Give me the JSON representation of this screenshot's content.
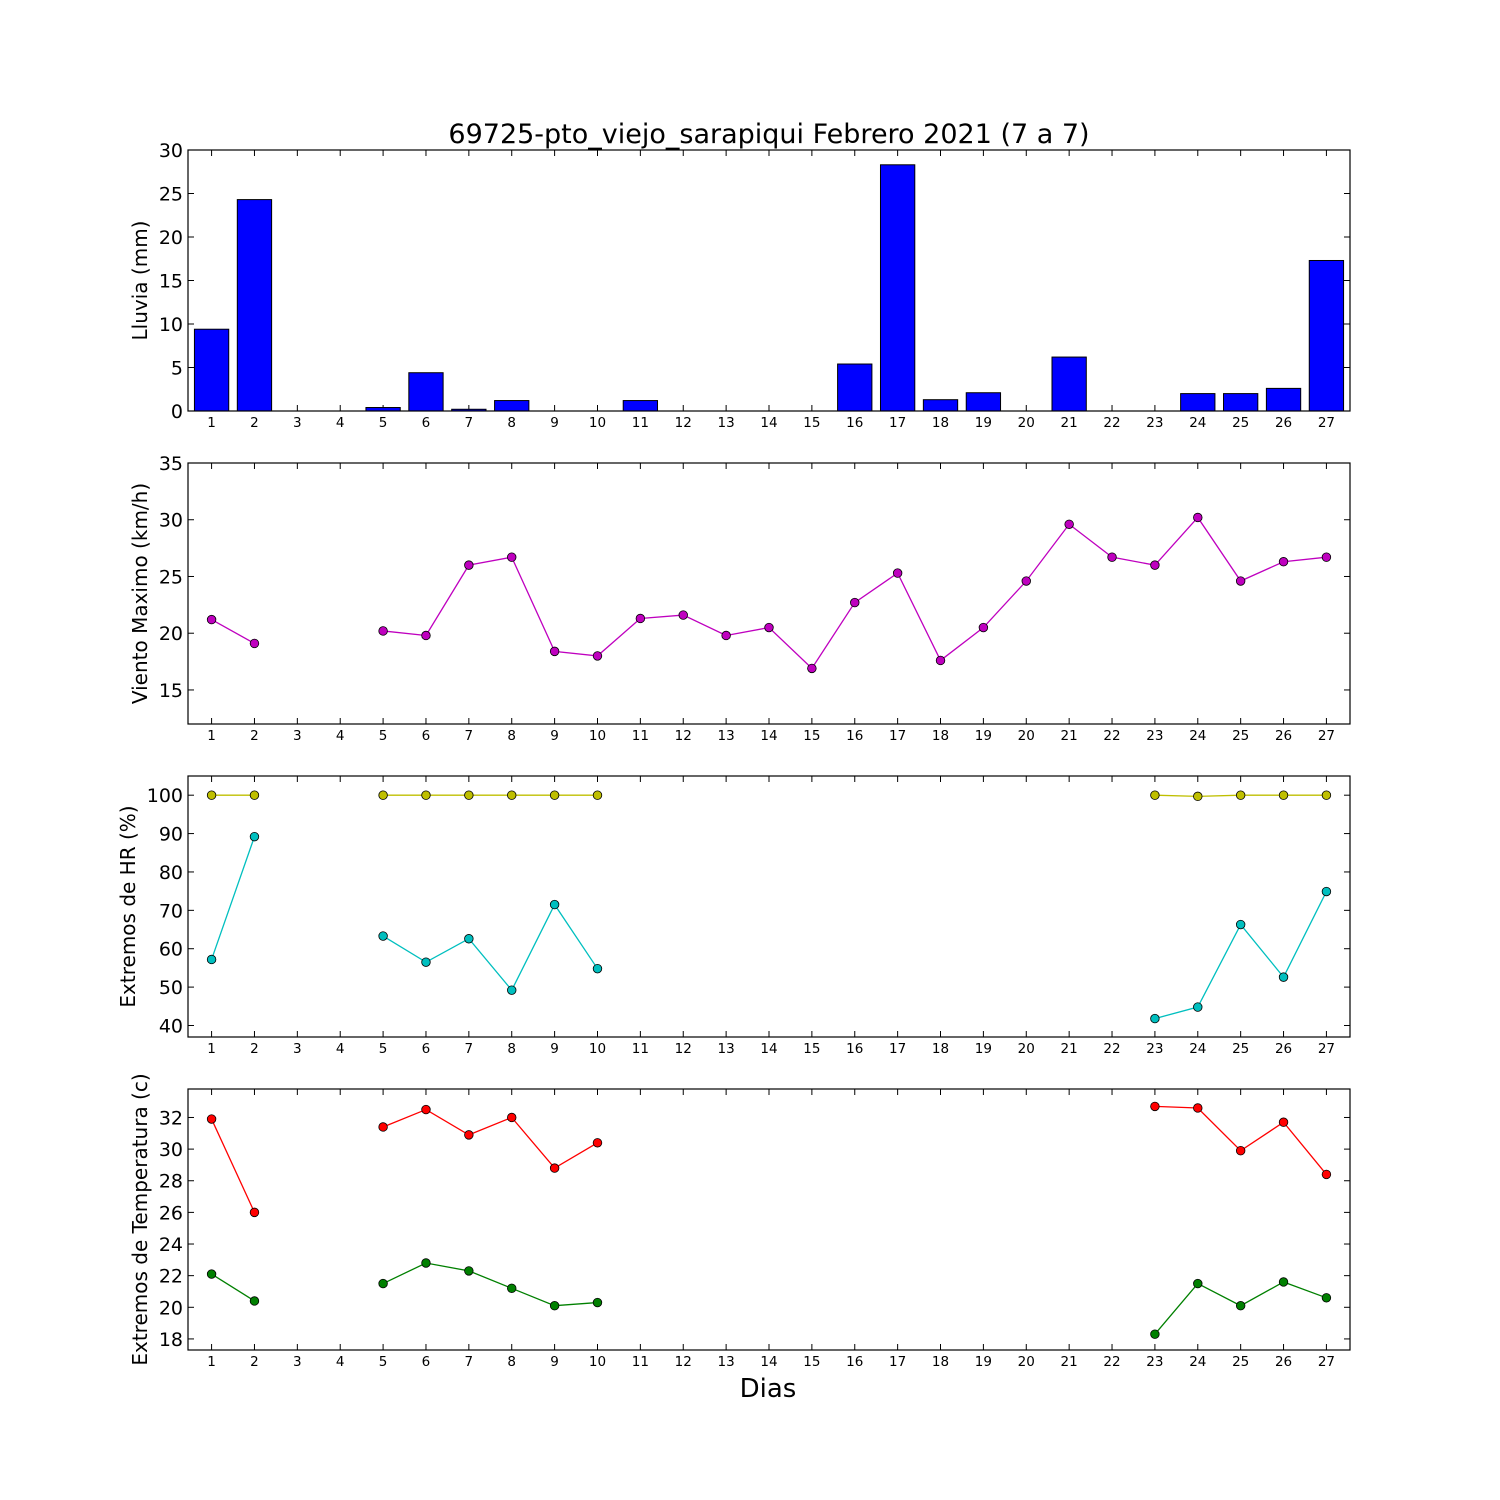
{
  "figure": {
    "title": "69725-pto_viejo_sarapiqui Febrero 2021  (7 a 7)",
    "xlabel": "Dias"
  },
  "chart_data": [
    {
      "type": "bar",
      "ylabel": "Lluvia (mm)",
      "ylim": [
        0,
        30
      ],
      "yticks": [
        0,
        5,
        10,
        15,
        20,
        25,
        30
      ],
      "categories": [
        1,
        2,
        3,
        4,
        5,
        6,
        7,
        8,
        9,
        10,
        11,
        12,
        13,
        14,
        15,
        16,
        17,
        18,
        19,
        20,
        21,
        22,
        23,
        24,
        25,
        26,
        27
      ],
      "colors": {
        "bar": "#0000ff"
      },
      "series": [
        {
          "values": [
            9.4,
            24.3,
            0,
            0,
            0.4,
            4.4,
            0.2,
            1.2,
            0,
            0,
            1.2,
            0,
            0,
            0,
            0,
            5.4,
            28.3,
            1.3,
            2.1,
            0,
            6.2,
            0,
            0,
            2.0,
            2.0,
            2.6,
            17.3
          ]
        }
      ],
      "grid": false
    },
    {
      "type": "line",
      "ylabel": "Viento Maximo (km/h)",
      "ylim": [
        12,
        35
      ],
      "yticks": [
        15,
        20,
        25,
        30,
        35
      ],
      "categories": [
        1,
        2,
        3,
        4,
        5,
        6,
        7,
        8,
        9,
        10,
        11,
        12,
        13,
        14,
        15,
        16,
        17,
        18,
        19,
        20,
        21,
        22,
        23,
        24,
        25,
        26,
        27
      ],
      "series": [
        {
          "color": "#bf00bf",
          "values": [
            21.2,
            19.1,
            null,
            null,
            20.2,
            19.8,
            26.0,
            26.7,
            18.4,
            18.0,
            21.3,
            21.6,
            19.8,
            20.5,
            16.9,
            22.7,
            25.3,
            17.6,
            20.5,
            24.6,
            29.6,
            26.7,
            26.0,
            30.2,
            24.6,
            26.3,
            26.7
          ]
        }
      ],
      "grid": false
    },
    {
      "type": "line",
      "ylabel": "Extremos de HR (%)",
      "ylim": [
        37,
        105
      ],
      "yticks": [
        40,
        50,
        60,
        70,
        80,
        90,
        100
      ],
      "categories": [
        1,
        2,
        3,
        4,
        5,
        6,
        7,
        8,
        9,
        10,
        11,
        12,
        13,
        14,
        15,
        16,
        17,
        18,
        19,
        20,
        21,
        22,
        23,
        24,
        25,
        26,
        27
      ],
      "series": [
        {
          "color": "#bfbf00",
          "values": [
            100,
            100,
            null,
            null,
            100,
            100,
            100,
            100,
            100,
            100,
            null,
            null,
            null,
            null,
            null,
            null,
            null,
            null,
            null,
            null,
            null,
            null,
            100,
            99.7,
            100,
            100,
            100
          ]
        },
        {
          "color": "#00bfbf",
          "values": [
            57.2,
            89.2,
            null,
            null,
            63.3,
            56.5,
            62.6,
            49.2,
            71.5,
            54.8,
            null,
            null,
            null,
            null,
            null,
            null,
            null,
            null,
            null,
            null,
            null,
            null,
            41.8,
            44.8,
            66.3,
            52.6,
            74.9
          ]
        }
      ],
      "grid": false
    },
    {
      "type": "line",
      "ylabel": "Extremos de Temperatura (c)",
      "ylim": [
        17.3,
        33.8
      ],
      "yticks": [
        18,
        20,
        22,
        24,
        26,
        28,
        30,
        32
      ],
      "categories": [
        1,
        2,
        3,
        4,
        5,
        6,
        7,
        8,
        9,
        10,
        11,
        12,
        13,
        14,
        15,
        16,
        17,
        18,
        19,
        20,
        21,
        22,
        23,
        24,
        25,
        26,
        27
      ],
      "series": [
        {
          "color": "#ff0000",
          "values": [
            31.9,
            26.0,
            null,
            null,
            31.4,
            32.5,
            30.9,
            32.0,
            28.8,
            30.4,
            null,
            null,
            null,
            null,
            null,
            null,
            null,
            null,
            null,
            null,
            null,
            null,
            32.7,
            32.6,
            29.9,
            31.7,
            28.4
          ]
        },
        {
          "color": "#008000",
          "values": [
            22.1,
            20.4,
            null,
            null,
            21.5,
            22.8,
            22.3,
            21.2,
            20.1,
            20.3,
            null,
            null,
            null,
            null,
            null,
            null,
            null,
            null,
            null,
            null,
            null,
            null,
            18.3,
            21.5,
            20.1,
            21.6,
            20.6
          ]
        }
      ],
      "grid": false
    }
  ]
}
